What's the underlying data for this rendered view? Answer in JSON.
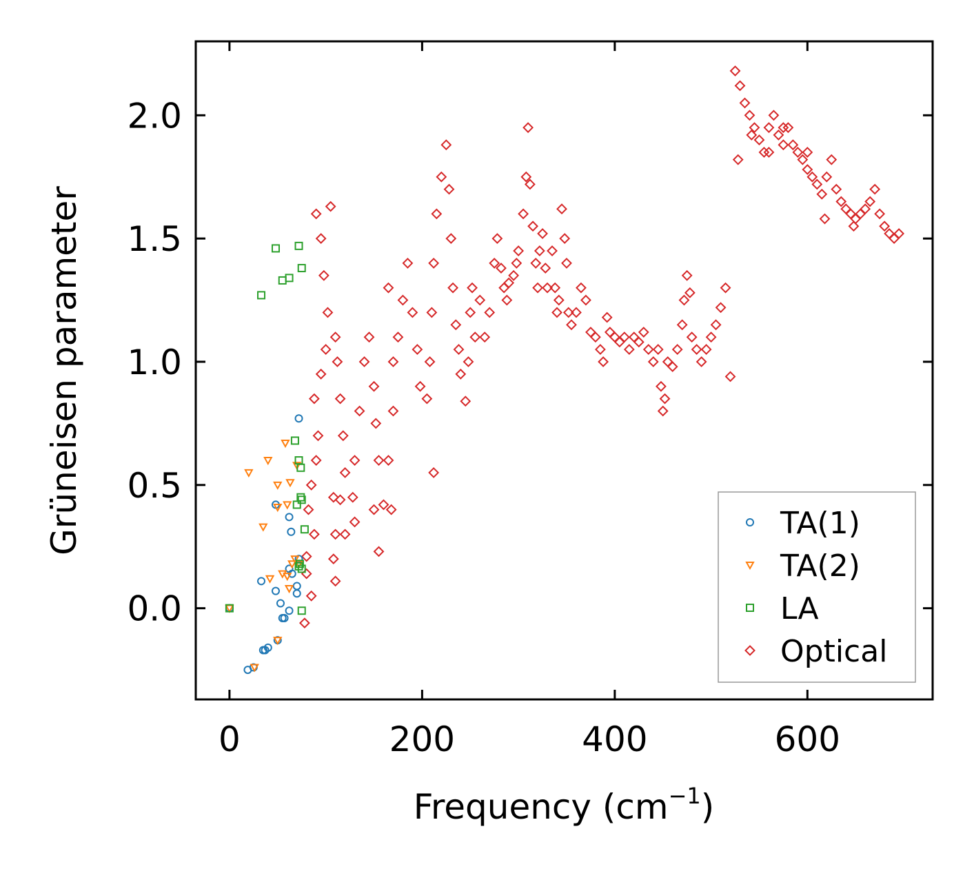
{
  "chart_data": {
    "type": "scatter",
    "title": "",
    "xlabel": "Frequency (cm",
    "xlabel_exponent": "−1",
    "xlabel_suffix": ")",
    "ylabel": "Grüneisen parameter",
    "xlim": [
      -35,
      730
    ],
    "ylim": [
      -0.37,
      2.3
    ],
    "xticks": [
      0,
      200,
      400,
      600
    ],
    "xtick_labels": [
      "0",
      "200",
      "400",
      "600"
    ],
    "yticks": [
      0.0,
      0.5,
      1.0,
      1.5,
      2.0
    ],
    "ytick_labels": [
      "0.0",
      "0.5",
      "1.0",
      "1.5",
      "2.0"
    ],
    "legend_position": "lower-right",
    "series": [
      {
        "name": "TA(1)",
        "marker": "circle",
        "color": "#1f77b4",
        "points": [
          [
            0,
            0.0
          ],
          [
            19,
            -0.25
          ],
          [
            25,
            -0.24
          ],
          [
            35,
            -0.17
          ],
          [
            37,
            -0.17
          ],
          [
            40,
            -0.16
          ],
          [
            50,
            -0.13
          ],
          [
            33,
            0.11
          ],
          [
            48,
            0.07
          ],
          [
            53,
            0.02
          ],
          [
            55,
            -0.04
          ],
          [
            57,
            -0.04
          ],
          [
            62,
            -0.01
          ],
          [
            62,
            0.16
          ],
          [
            65,
            0.14
          ],
          [
            70,
            0.06
          ],
          [
            70,
            0.09
          ],
          [
            72,
            0.2
          ],
          [
            48,
            0.42
          ],
          [
            62,
            0.37
          ],
          [
            64,
            0.31
          ],
          [
            72,
            0.77
          ]
        ]
      },
      {
        "name": "TA(2)",
        "marker": "triangle",
        "color": "#ff7f0e",
        "points": [
          [
            0,
            0.0
          ],
          [
            26,
            -0.24
          ],
          [
            50,
            -0.13
          ],
          [
            42,
            0.12
          ],
          [
            55,
            0.14
          ],
          [
            60,
            0.13
          ],
          [
            62,
            0.08
          ],
          [
            65,
            0.18
          ],
          [
            68,
            0.2
          ],
          [
            72,
            0.18
          ],
          [
            20,
            0.55
          ],
          [
            40,
            0.6
          ],
          [
            50,
            0.5
          ],
          [
            58,
            0.67
          ],
          [
            60,
            0.42
          ],
          [
            63,
            0.51
          ],
          [
            70,
            0.58
          ],
          [
            35,
            0.33
          ],
          [
            50,
            0.41
          ]
        ]
      },
      {
        "name": "LA",
        "marker": "square",
        "color": "#2ca02c",
        "points": [
          [
            0,
            0.0
          ],
          [
            33,
            1.27
          ],
          [
            48,
            1.46
          ],
          [
            55,
            1.33
          ],
          [
            62,
            1.34
          ],
          [
            72,
            1.47
          ],
          [
            75,
            1.38
          ],
          [
            68,
            0.68
          ],
          [
            72,
            0.6
          ],
          [
            74,
            0.57
          ],
          [
            74,
            0.45
          ],
          [
            75,
            0.44
          ],
          [
            70,
            0.42
          ],
          [
            78,
            0.32
          ],
          [
            72,
            0.17
          ],
          [
            73,
            0.18
          ],
          [
            75,
            0.16
          ],
          [
            75,
            -0.01
          ]
        ]
      },
      {
        "name": "Optical",
        "marker": "diamond",
        "color": "#d62728",
        "points": [
          [
            78,
            -0.06
          ],
          [
            85,
            0.05
          ],
          [
            80,
            0.14
          ],
          [
            80,
            0.21
          ],
          [
            88,
            0.3
          ],
          [
            82,
            0.4
          ],
          [
            85,
            0.5
          ],
          [
            90,
            0.6
          ],
          [
            92,
            0.7
          ],
          [
            88,
            0.85
          ],
          [
            95,
            0.95
          ],
          [
            100,
            1.05
          ],
          [
            102,
            1.2
          ],
          [
            98,
            1.35
          ],
          [
            95,
            1.5
          ],
          [
            90,
            1.6
          ],
          [
            105,
            1.63
          ],
          [
            110,
            1.1
          ],
          [
            112,
            1.0
          ],
          [
            115,
            0.85
          ],
          [
            118,
            0.7
          ],
          [
            120,
            0.55
          ],
          [
            108,
            0.45
          ],
          [
            110,
            0.3
          ],
          [
            108,
            0.2
          ],
          [
            110,
            0.11
          ],
          [
            120,
            0.3
          ],
          [
            128,
            0.45
          ],
          [
            130,
            0.6
          ],
          [
            135,
            0.8
          ],
          [
            140,
            1.0
          ],
          [
            145,
            1.1
          ],
          [
            150,
            0.9
          ],
          [
            152,
            0.75
          ],
          [
            155,
            0.6
          ],
          [
            150,
            0.4
          ],
          [
            155,
            0.23
          ],
          [
            160,
            0.42
          ],
          [
            168,
            0.4
          ],
          [
            165,
            0.6
          ],
          [
            170,
            0.8
          ],
          [
            170,
            1.0
          ],
          [
            175,
            1.1
          ],
          [
            165,
            1.3
          ],
          [
            180,
            1.25
          ],
          [
            185,
            1.4
          ],
          [
            190,
            1.2
          ],
          [
            195,
            1.05
          ],
          [
            198,
            0.9
          ],
          [
            205,
            0.85
          ],
          [
            208,
            1.0
          ],
          [
            210,
            1.2
          ],
          [
            212,
            1.4
          ],
          [
            215,
            1.6
          ],
          [
            220,
            1.75
          ],
          [
            225,
            1.88
          ],
          [
            228,
            1.7
          ],
          [
            230,
            1.5
          ],
          [
            232,
            1.3
          ],
          [
            235,
            1.15
          ],
          [
            238,
            1.05
          ],
          [
            240,
            0.95
          ],
          [
            245,
            0.84
          ],
          [
            248,
            1.0
          ],
          [
            250,
            1.2
          ],
          [
            252,
            1.3
          ],
          [
            255,
            1.1
          ],
          [
            260,
            1.25
          ],
          [
            265,
            1.1
          ],
          [
            270,
            1.2
          ],
          [
            275,
            1.4
          ],
          [
            278,
            1.5
          ],
          [
            282,
            1.38
          ],
          [
            285,
            1.3
          ],
          [
            288,
            1.25
          ],
          [
            290,
            1.32
          ],
          [
            295,
            1.35
          ],
          [
            298,
            1.4
          ],
          [
            300,
            1.45
          ],
          [
            305,
            1.6
          ],
          [
            308,
            1.75
          ],
          [
            310,
            1.95
          ],
          [
            312,
            1.72
          ],
          [
            315,
            1.55
          ],
          [
            318,
            1.4
          ],
          [
            320,
            1.3
          ],
          [
            322,
            1.45
          ],
          [
            325,
            1.52
          ],
          [
            328,
            1.38
          ],
          [
            330,
            1.3
          ],
          [
            335,
            1.45
          ],
          [
            338,
            1.3
          ],
          [
            340,
            1.2
          ],
          [
            342,
            1.25
          ],
          [
            345,
            1.62
          ],
          [
            348,
            1.5
          ],
          [
            350,
            1.4
          ],
          [
            352,
            1.2
          ],
          [
            355,
            1.15
          ],
          [
            360,
            1.2
          ],
          [
            365,
            1.3
          ],
          [
            370,
            1.25
          ],
          [
            375,
            1.12
          ],
          [
            380,
            1.1
          ],
          [
            385,
            1.05
          ],
          [
            388,
            1.0
          ],
          [
            392,
            1.18
          ],
          [
            395,
            1.12
          ],
          [
            400,
            1.1
          ],
          [
            405,
            1.08
          ],
          [
            410,
            1.1
          ],
          [
            415,
            1.05
          ],
          [
            420,
            1.1
          ],
          [
            425,
            1.08
          ],
          [
            430,
            1.12
          ],
          [
            435,
            1.05
          ],
          [
            440,
            1.0
          ],
          [
            445,
            1.05
          ],
          [
            448,
            0.9
          ],
          [
            450,
            0.8
          ],
          [
            452,
            0.85
          ],
          [
            455,
            1.0
          ],
          [
            460,
            0.98
          ],
          [
            465,
            1.05
          ],
          [
            470,
            1.15
          ],
          [
            472,
            1.25
          ],
          [
            475,
            1.35
          ],
          [
            478,
            1.28
          ],
          [
            480,
            1.1
          ],
          [
            485,
            1.05
          ],
          [
            490,
            1.0
          ],
          [
            495,
            1.05
          ],
          [
            500,
            1.1
          ],
          [
            505,
            1.15
          ],
          [
            510,
            1.22
          ],
          [
            515,
            1.3
          ],
          [
            520,
            0.94
          ],
          [
            212,
            0.55
          ],
          [
            130,
            0.35
          ],
          [
            115,
            0.44
          ],
          [
            525,
            2.18
          ],
          [
            530,
            2.12
          ],
          [
            535,
            2.05
          ],
          [
            540,
            2.0
          ],
          [
            545,
            1.95
          ],
          [
            550,
            1.9
          ],
          [
            555,
            1.85
          ],
          [
            560,
            1.95
          ],
          [
            565,
            2.0
          ],
          [
            570,
            1.92
          ],
          [
            575,
            1.88
          ],
          [
            580,
            1.95
          ],
          [
            585,
            1.88
          ],
          [
            590,
            1.85
          ],
          [
            595,
            1.82
          ],
          [
            600,
            1.78
          ],
          [
            605,
            1.75
          ],
          [
            610,
            1.72
          ],
          [
            615,
            1.68
          ],
          [
            620,
            1.75
          ],
          [
            625,
            1.82
          ],
          [
            630,
            1.7
          ],
          [
            635,
            1.65
          ],
          [
            640,
            1.62
          ],
          [
            645,
            1.6
          ],
          [
            650,
            1.58
          ],
          [
            655,
            1.6
          ],
          [
            660,
            1.62
          ],
          [
            665,
            1.65
          ],
          [
            670,
            1.7
          ],
          [
            675,
            1.6
          ],
          [
            680,
            1.55
          ],
          [
            685,
            1.52
          ],
          [
            690,
            1.5
          ],
          [
            695,
            1.52
          ],
          [
            575,
            1.95
          ],
          [
            528,
            1.82
          ],
          [
            542,
            1.92
          ],
          [
            560,
            1.85
          ],
          [
            600,
            1.85
          ],
          [
            618,
            1.58
          ],
          [
            648,
            1.55
          ]
        ]
      }
    ]
  }
}
